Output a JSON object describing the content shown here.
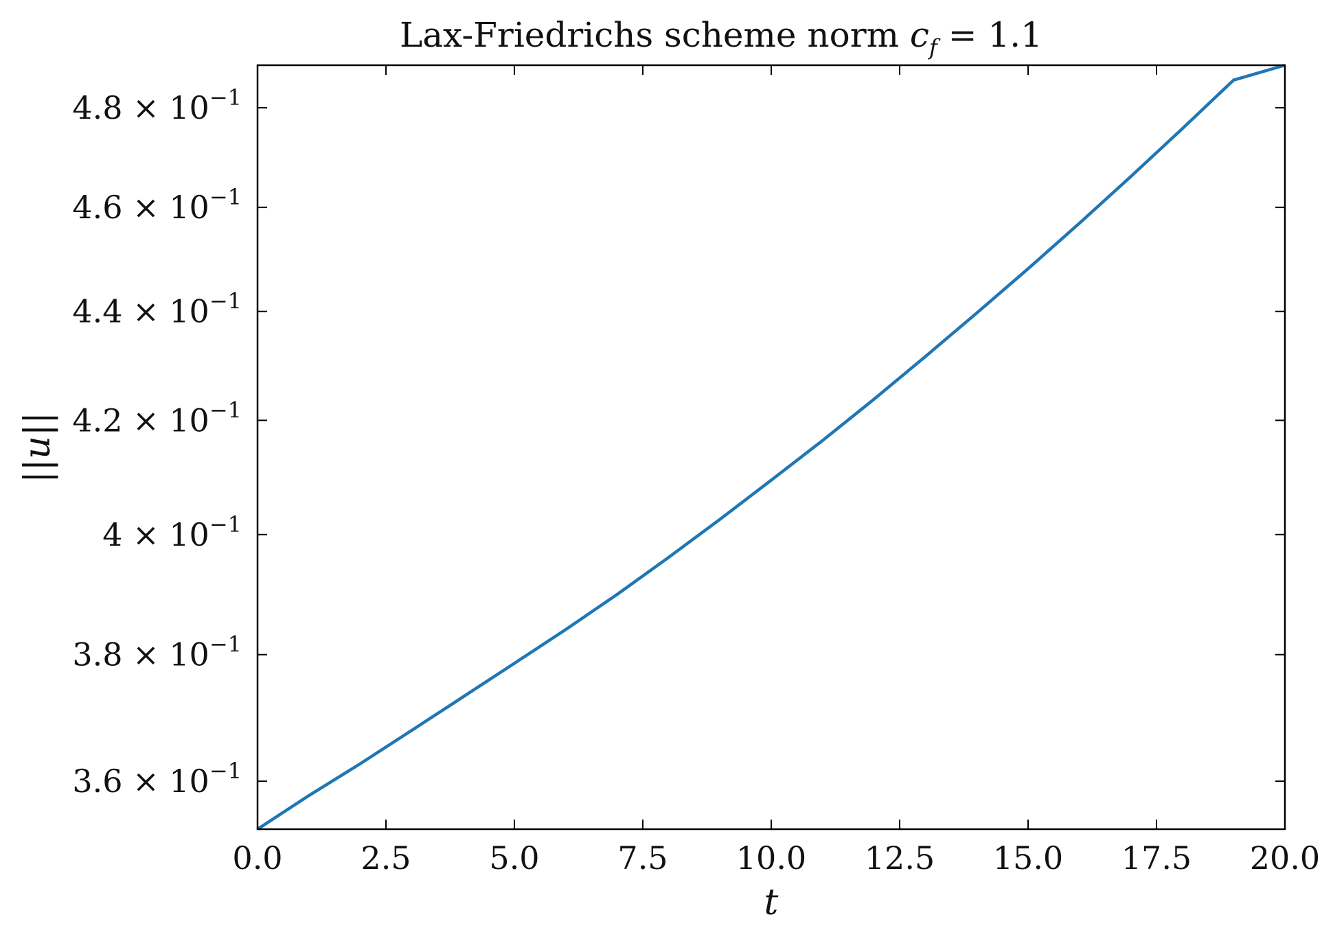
{
  "chart_data": {
    "type": "line",
    "title": "Lax-Friedrichs scheme norm c_f = 1.1",
    "title_main": "Lax-Friedrichs scheme norm ",
    "title_var": "c",
    "title_sub": "f",
    "title_eq": " = 1.1",
    "xlabel": "t",
    "ylabel": "||u||",
    "xlim": [
      0,
      20
    ],
    "ylim": [
      0.3527,
      0.4888
    ],
    "yscale": "log",
    "grid": false,
    "ticks_direction": "in",
    "x_ticks": [
      {
        "value": 0,
        "label": "0.0"
      },
      {
        "value": 2.5,
        "label": "2.5"
      },
      {
        "value": 5,
        "label": "5.0"
      },
      {
        "value": 7.5,
        "label": "7.5"
      },
      {
        "value": 10,
        "label": "10.0"
      },
      {
        "value": 12.5,
        "label": "12.5"
      },
      {
        "value": 15,
        "label": "15.0"
      },
      {
        "value": 17.5,
        "label": "17.5"
      },
      {
        "value": 20,
        "label": "20.0"
      }
    ],
    "y_ticks": [
      {
        "value": 0.36,
        "mantissa": "3.6",
        "exp": "−1"
      },
      {
        "value": 0.38,
        "mantissa": "3.8",
        "exp": "−1"
      },
      {
        "value": 0.4,
        "mantissa": "4",
        "exp": "−1"
      },
      {
        "value": 0.42,
        "mantissa": "4.2",
        "exp": "−1"
      },
      {
        "value": 0.44,
        "mantissa": "4.4",
        "exp": "−1"
      },
      {
        "value": 0.46,
        "mantissa": "4.6",
        "exp": "−1"
      },
      {
        "value": 0.48,
        "mantissa": "4.8",
        "exp": "−1"
      }
    ],
    "series": [
      {
        "color": "#1f77b4",
        "x": [
          0,
          1,
          2,
          3,
          4,
          5,
          6,
          7,
          8,
          9,
          10,
          11,
          12,
          13,
          14,
          15,
          16,
          17,
          18,
          19,
          20
        ],
        "y": [
          0.3527,
          0.3578,
          0.3627,
          0.3679,
          0.3732,
          0.3786,
          0.3841,
          0.3899,
          0.3961,
          0.4026,
          0.4094,
          0.4164,
          0.4238,
          0.4316,
          0.4397,
          0.4481,
          0.4569,
          0.4661,
          0.4757,
          0.4857,
          0.4888
        ]
      }
    ]
  }
}
